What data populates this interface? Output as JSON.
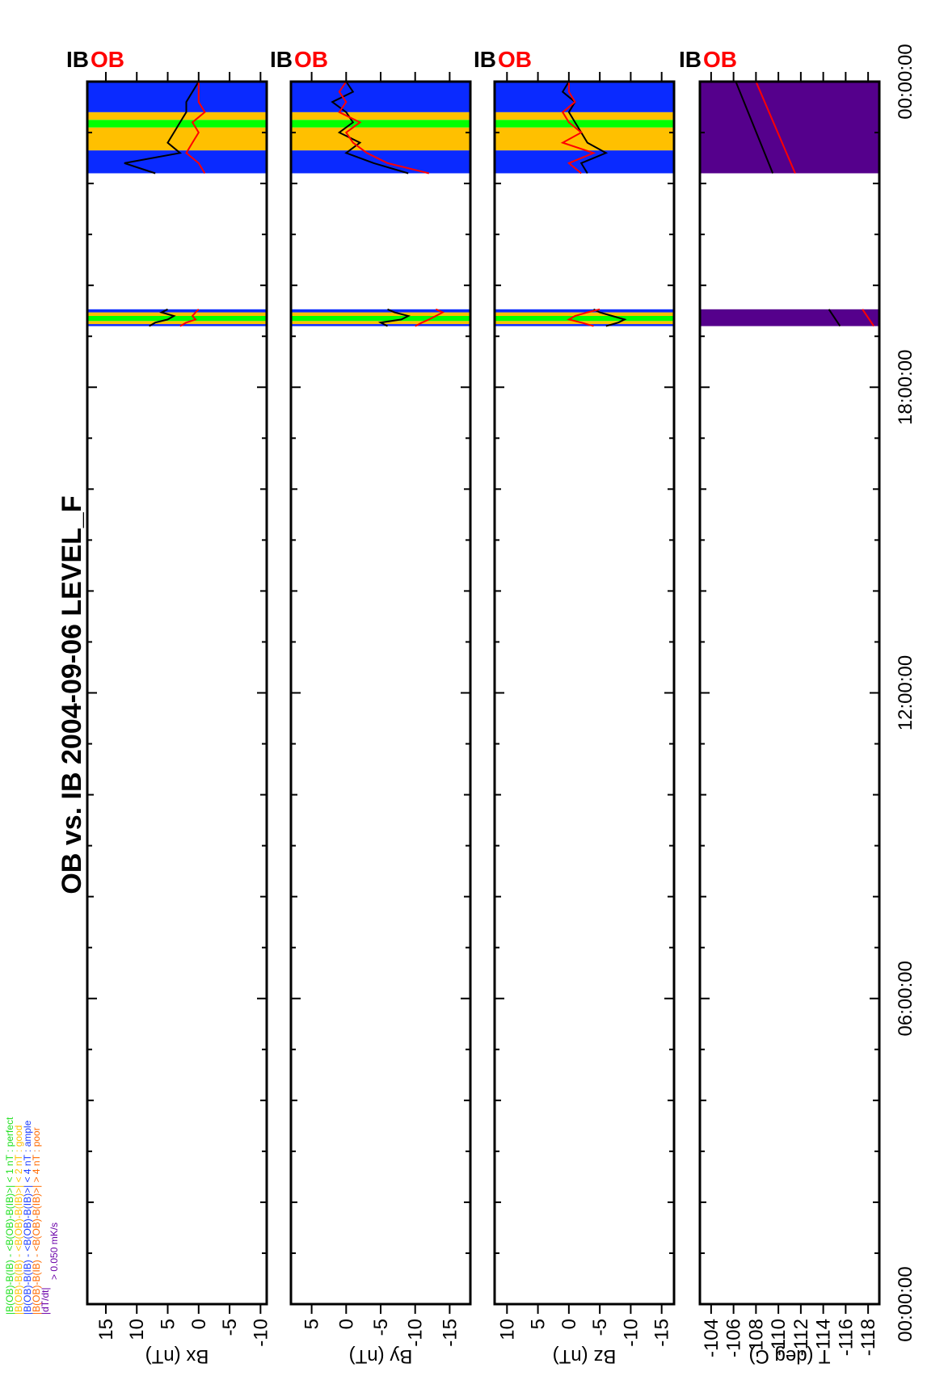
{
  "title": "OB vs. IB    2004-09-06 LEVEL_F",
  "legend": [
    {
      "text": "|B(OB)-B(IB) - <B(OB)-B(IB)>| < 1 nT  : perfect",
      "color": "#22e022"
    },
    {
      "text": "|B(OB)-B(IB) - <B(OB)-B(IB)>| < 2 nT  : good",
      "color": "#ffc000"
    },
    {
      "text": "|B(OB)-B(IB) - <B(OB)-B(IB)>| < 4 nT  : ample",
      "color": "#1a3cff"
    },
    {
      "text": "|B(OB)-B(IB) - <B(OB)-B(IB)>| > 4 nT  : poor",
      "color": "#ff6a00"
    },
    {
      "text": "|dT/dt|",
      "color": "#6a00a8"
    },
    {
      "text": "> 0.050 mK/s",
      "color": "#6a00a8"
    }
  ],
  "series_labels": {
    "ob": "OB",
    "ib": "IB"
  },
  "series_colors": {
    "ob": "#ff0000",
    "ib": "#000000"
  },
  "band_colors": {
    "perfect": "#00ff00",
    "good": "#ffc000",
    "ample": "#0a2aff",
    "dTdt": "#55008c"
  },
  "x_axis": {
    "tick_labels": [
      "00:00:00",
      "06:00:00",
      "12:00:00",
      "18:00:00",
      "00:00:00"
    ],
    "tick_hours": [
      0,
      6,
      12,
      18,
      24
    ]
  },
  "chart_data": [
    {
      "type": "line",
      "panel": "Bx",
      "ylabel": "Bx (nT)",
      "ylim": [
        -11,
        18
      ],
      "yticks": [
        15,
        10,
        5,
        0,
        -5,
        -10
      ],
      "ytick_labels": [
        "15",
        "10",
        "5",
        "0",
        "-5",
        "-10"
      ],
      "segments": [
        {
          "x_hours": [
            19.2,
            19.27,
            19.33,
            19.4,
            19.47,
            19.53
          ],
          "ob": [
            3,
            2,
            0.5,
            1,
            0.5,
            0
          ],
          "ib": [
            8,
            7,
            5,
            4,
            6,
            5
          ]
        },
        {
          "x_hours": [
            22.2,
            22.4,
            22.6,
            22.8,
            23.0,
            23.2,
            23.4,
            23.6,
            23.8,
            24.0
          ],
          "ob": [
            -1,
            0,
            2,
            1,
            0,
            1,
            -1,
            0,
            0,
            0
          ],
          "ib": [
            7,
            12,
            3,
            5,
            4,
            3,
            2,
            2,
            1,
            0
          ]
        }
      ]
    },
    {
      "type": "line",
      "panel": "By",
      "ylabel": "By (nT)",
      "ylim": [
        -18,
        8
      ],
      "yticks": [
        5,
        0,
        -5,
        -10,
        -15
      ],
      "ytick_labels": [
        "5",
        "0",
        "-5",
        "-10",
        "-15"
      ],
      "segments": [
        {
          "x_hours": [
            19.2,
            19.27,
            19.33,
            19.4,
            19.47,
            19.53
          ],
          "ob": [
            -10,
            -11,
            -12,
            -13,
            -14,
            -13
          ],
          "ib": [
            -6,
            -5,
            -8,
            -9,
            -7,
            -6
          ]
        },
        {
          "x_hours": [
            22.2,
            22.4,
            22.6,
            22.8,
            23.0,
            23.2,
            23.4,
            23.6,
            23.8,
            24.0
          ],
          "ob": [
            -12,
            -6,
            -3,
            -1,
            0,
            -2,
            1,
            0,
            1,
            0
          ],
          "ib": [
            -9,
            -4,
            0,
            -2,
            1,
            -1,
            0,
            2,
            -1,
            0
          ]
        }
      ]
    },
    {
      "type": "line",
      "panel": "Bz",
      "ylabel": "Bz (nT)",
      "ylim": [
        -17,
        12
      ],
      "yticks": [
        10,
        5,
        0,
        -5,
        -10,
        -15
      ],
      "ytick_labels": [
        "10",
        "5",
        "0",
        "-5",
        "-10",
        "-15"
      ],
      "segments": [
        {
          "x_hours": [
            19.2,
            19.27,
            19.33,
            19.4,
            19.47,
            19.53
          ],
          "ob": [
            -4,
            -2,
            0,
            -1,
            -3,
            -5
          ],
          "ib": [
            -6,
            -8,
            -9,
            -7,
            -5,
            -4
          ]
        },
        {
          "x_hours": [
            22.2,
            22.4,
            22.6,
            22.8,
            23.0,
            23.2,
            23.4,
            23.6,
            23.8,
            24.0
          ],
          "ob": [
            -2,
            0,
            -4,
            1,
            -2,
            0,
            1,
            -1,
            0,
            0
          ],
          "ib": [
            -3,
            -2,
            -6,
            -3,
            -2,
            -1,
            0,
            -1,
            1,
            0
          ]
        }
      ]
    },
    {
      "type": "line",
      "panel": "T",
      "ylabel": "T (deg C)",
      "ylim": [
        -119,
        -103
      ],
      "yticks": [
        -104,
        -106,
        -108,
        -110,
        -112,
        -114,
        -116,
        -118
      ],
      "ytick_labels": [
        "-104",
        "-106",
        "-108",
        "-110",
        "-112",
        "-114",
        "-116",
        "-118"
      ],
      "segments": [
        {
          "x_hours": [
            19.2,
            19.53
          ],
          "ob": [
            -118.5,
            -117.5
          ],
          "ib": [
            -115.5,
            -114.5
          ]
        },
        {
          "x_hours": [
            22.2,
            24.0
          ],
          "ob": [
            -111.5,
            -108
          ],
          "ib": [
            -109.5,
            -106.2
          ]
        }
      ]
    }
  ],
  "quality_bands": [
    {
      "panel": "Bx",
      "bands": [
        {
          "from": 19.2,
          "to": 19.24,
          "q": "ample"
        },
        {
          "from": 19.24,
          "to": 19.3,
          "q": "good"
        },
        {
          "from": 19.3,
          "to": 19.4,
          "q": "perfect"
        },
        {
          "from": 19.4,
          "to": 19.47,
          "q": "good"
        },
        {
          "from": 19.47,
          "to": 19.53,
          "q": "ample"
        },
        {
          "from": 22.2,
          "to": 22.65,
          "q": "ample"
        },
        {
          "from": 22.65,
          "to": 23.1,
          "q": "good"
        },
        {
          "from": 23.1,
          "to": 23.25,
          "q": "perfect"
        },
        {
          "from": 23.25,
          "to": 23.4,
          "q": "good"
        },
        {
          "from": 23.4,
          "to": 24.0,
          "q": "ample"
        }
      ]
    },
    {
      "panel": "By",
      "bands": [
        {
          "from": 19.2,
          "to": 19.24,
          "q": "ample"
        },
        {
          "from": 19.24,
          "to": 19.3,
          "q": "good"
        },
        {
          "from": 19.3,
          "to": 19.4,
          "q": "perfect"
        },
        {
          "from": 19.4,
          "to": 19.47,
          "q": "good"
        },
        {
          "from": 19.47,
          "to": 19.53,
          "q": "ample"
        },
        {
          "from": 22.2,
          "to": 22.65,
          "q": "ample"
        },
        {
          "from": 22.65,
          "to": 23.1,
          "q": "good"
        },
        {
          "from": 23.1,
          "to": 23.25,
          "q": "perfect"
        },
        {
          "from": 23.25,
          "to": 23.4,
          "q": "good"
        },
        {
          "from": 23.4,
          "to": 24.0,
          "q": "ample"
        }
      ]
    },
    {
      "panel": "Bz",
      "bands": [
        {
          "from": 19.2,
          "to": 19.24,
          "q": "ample"
        },
        {
          "from": 19.24,
          "to": 19.3,
          "q": "good"
        },
        {
          "from": 19.3,
          "to": 19.4,
          "q": "perfect"
        },
        {
          "from": 19.4,
          "to": 19.47,
          "q": "good"
        },
        {
          "from": 19.47,
          "to": 19.53,
          "q": "ample"
        },
        {
          "from": 22.2,
          "to": 22.65,
          "q": "ample"
        },
        {
          "from": 22.65,
          "to": 23.1,
          "q": "good"
        },
        {
          "from": 23.1,
          "to": 23.25,
          "q": "perfect"
        },
        {
          "from": 23.25,
          "to": 23.4,
          "q": "good"
        },
        {
          "from": 23.4,
          "to": 24.0,
          "q": "ample"
        }
      ]
    },
    {
      "panel": "T",
      "bands": [
        {
          "from": 19.2,
          "to": 19.53,
          "q": "dTdt"
        },
        {
          "from": 22.2,
          "to": 24.0,
          "q": "dTdt"
        }
      ]
    }
  ]
}
